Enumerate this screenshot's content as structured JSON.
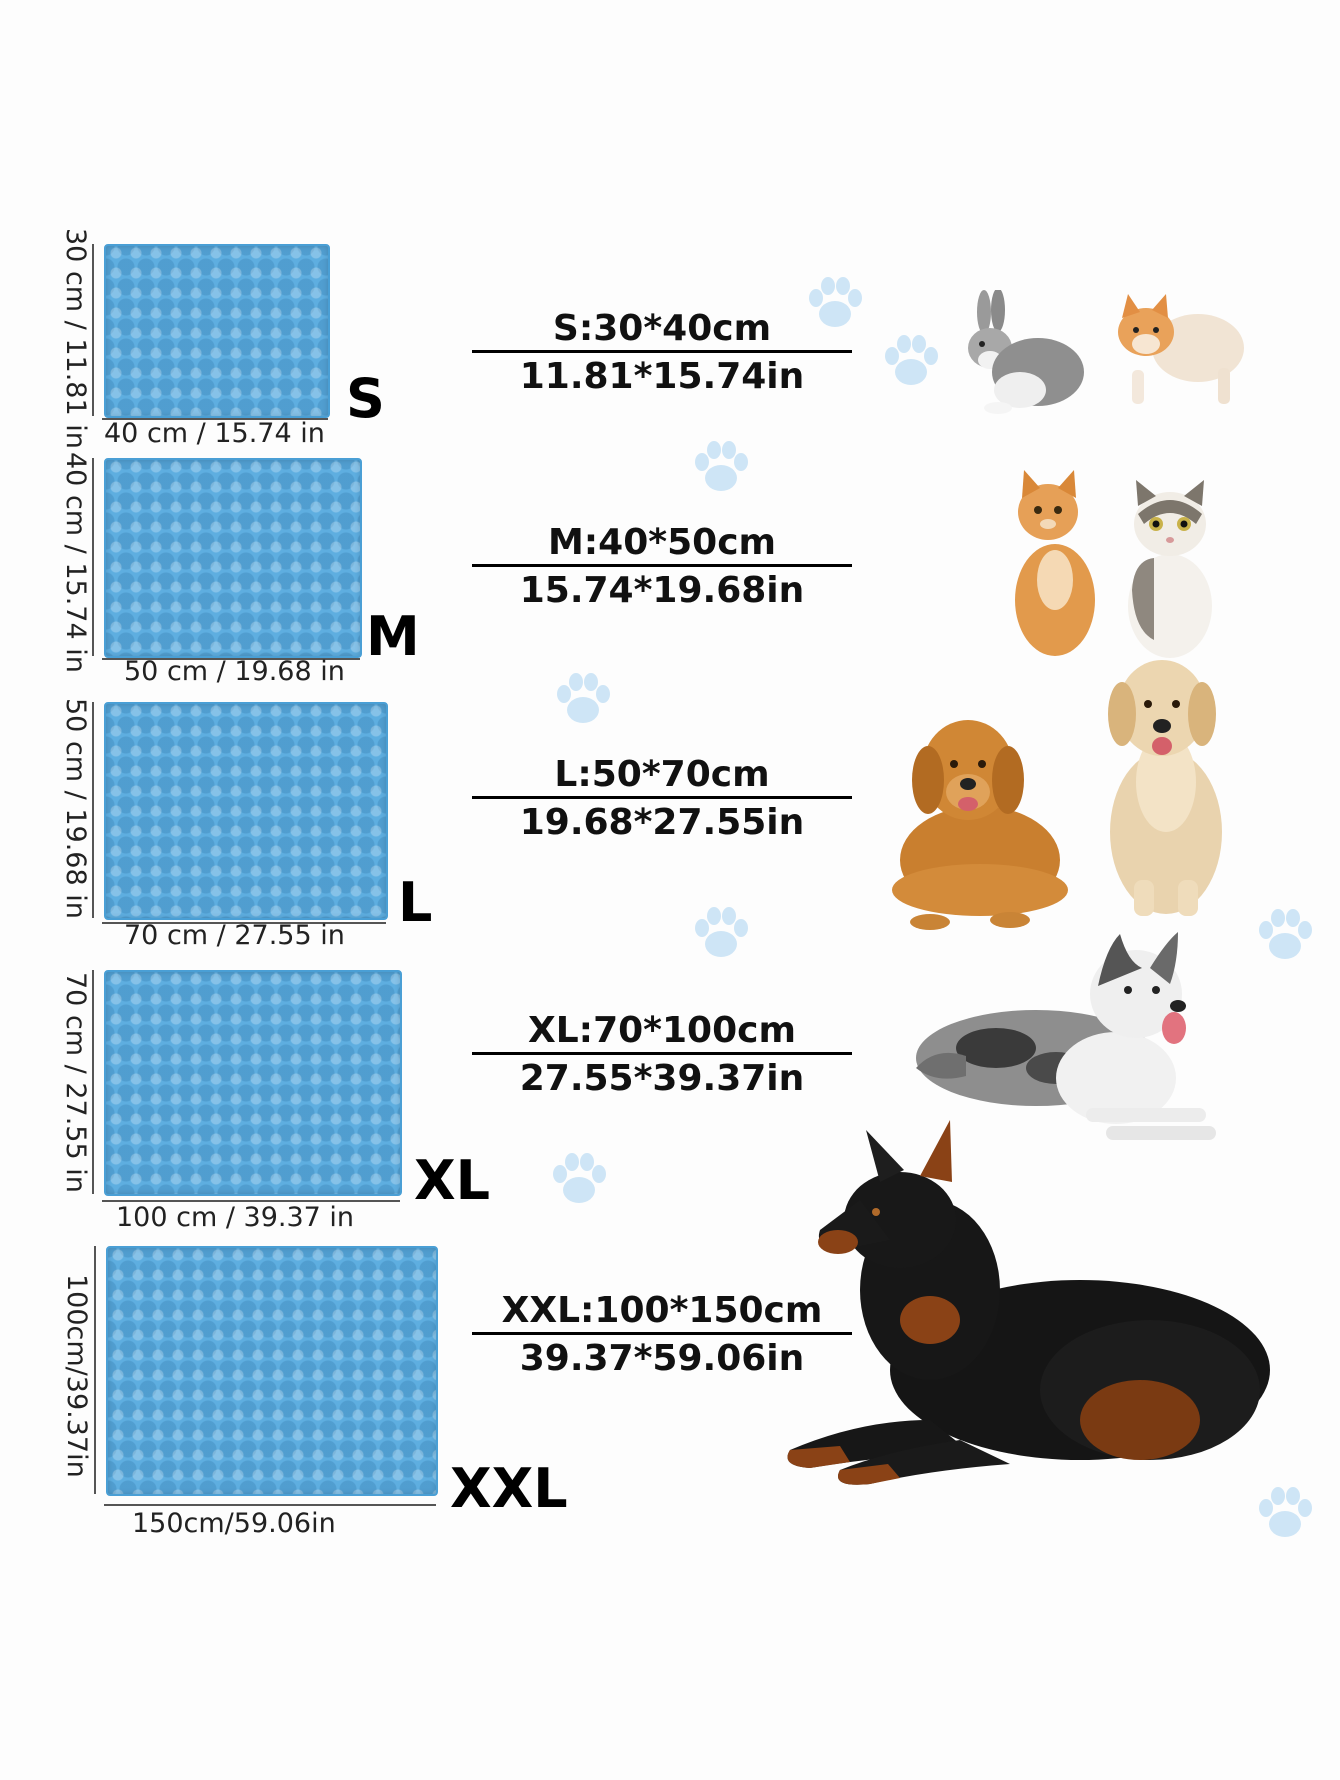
{
  "sizes": [
    {
      "letter": "S",
      "width_label": "40 cm / 15.74 in",
      "height_label": "30 cm / 11.81 in",
      "cm": "S:30*40cm",
      "in": "11.81*15.74in"
    },
    {
      "letter": "M",
      "width_label": "50 cm / 19.68 in",
      "height_label": "40 cm / 15.74 in",
      "cm": "M:40*50cm",
      "in": "15.74*19.68in"
    },
    {
      "letter": "L",
      "width_label": "70 cm / 27.55 in",
      "height_label": "50 cm / 19.68 in",
      "cm": "L:50*70cm",
      "in": "19.68*27.55in"
    },
    {
      "letter": "XL",
      "width_label": "100 cm / 39.37 in",
      "height_label": "70 cm / 27.55 in",
      "cm": "XL:70*100cm",
      "in": "27.55*39.37in"
    },
    {
      "letter": "XXL",
      "width_label": "150cm/59.06in",
      "height_label": "100cm/39.37in",
      "cm": "XXL:100*150cm",
      "in": "39.37*59.06in"
    }
  ],
  "colors": {
    "mat": "#5eaee0",
    "paw": "#a9d3f2"
  },
  "icons": [
    "paw-print-icon"
  ]
}
